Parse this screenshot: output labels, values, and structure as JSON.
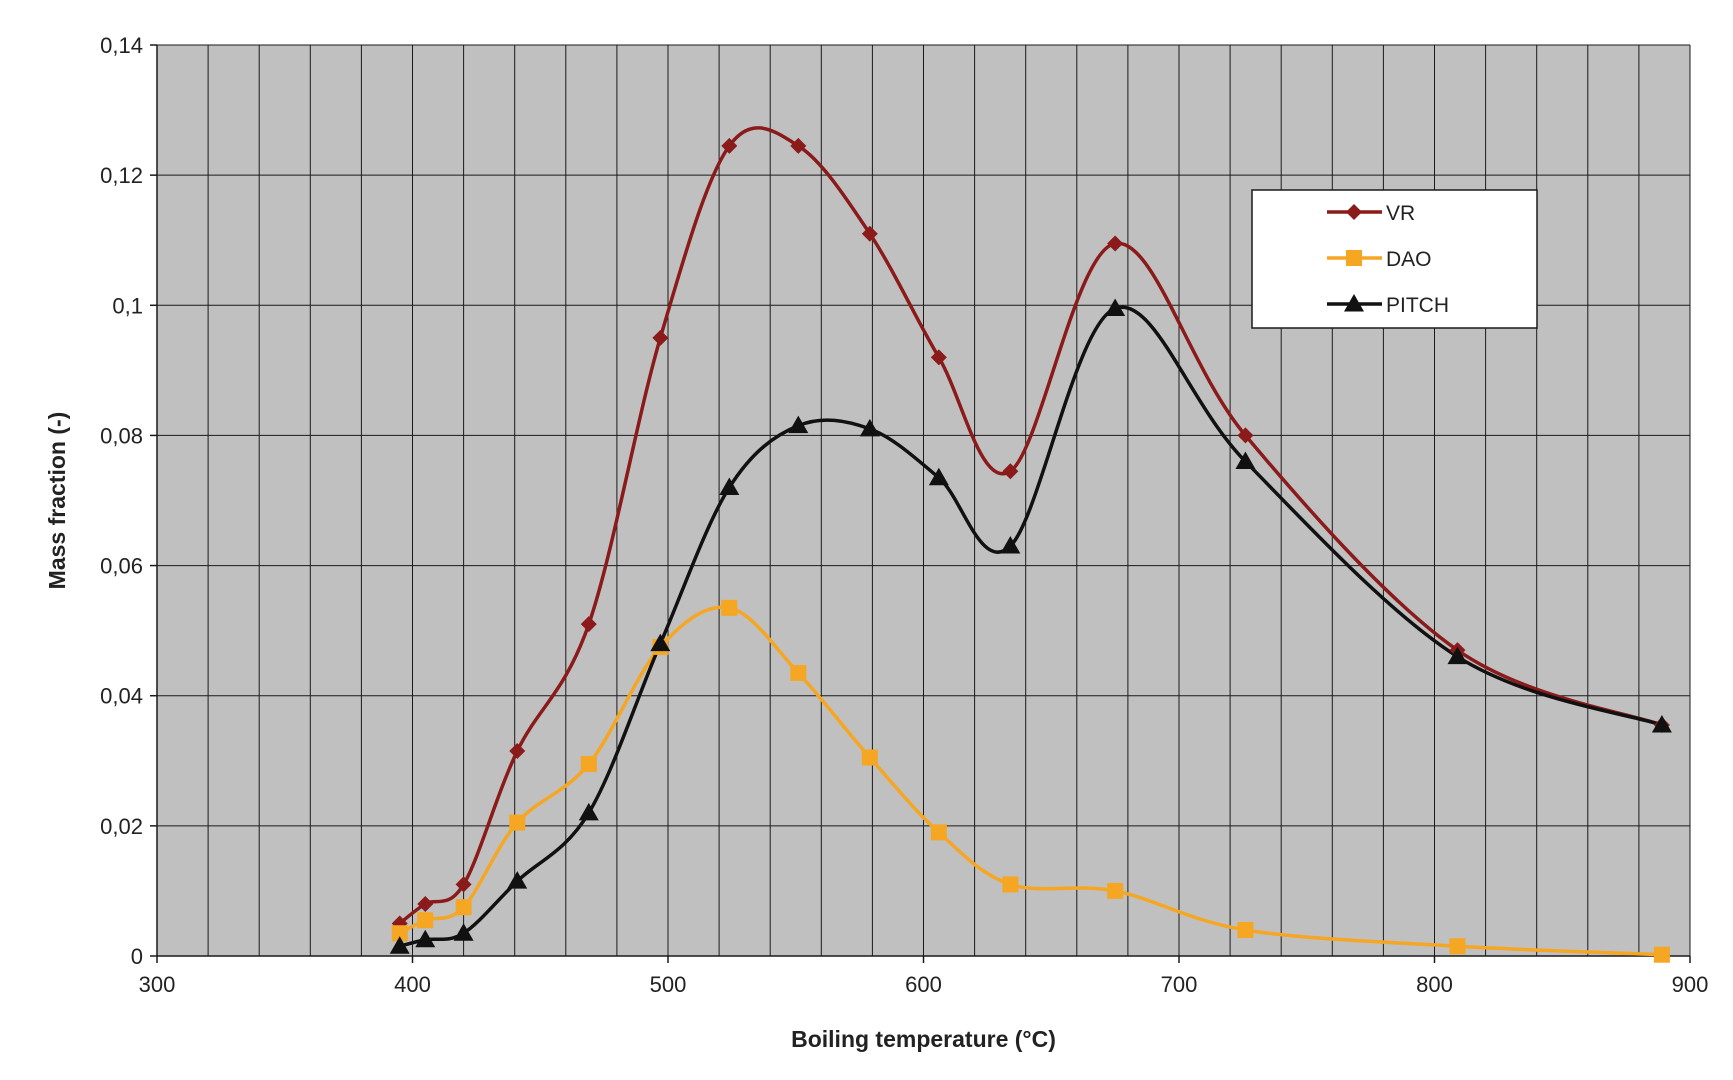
{
  "chart_data": {
    "type": "line",
    "smooth": true,
    "xlabel": "Boiling temperature (°C)",
    "ylabel": "Mass fraction (-)",
    "xlim": [
      300,
      900
    ],
    "ylim": [
      0,
      0.14
    ],
    "x_ticks": [
      300,
      400,
      500,
      600,
      700,
      800,
      900
    ],
    "x_tick_labels": [
      "300",
      "400",
      "500",
      "600",
      "700",
      "800",
      "900"
    ],
    "x_minor_grid_step": 20,
    "y_ticks": [
      0,
      0.02,
      0.04,
      0.06,
      0.08,
      0.1,
      0.12,
      0.14
    ],
    "y_tick_labels": [
      "0",
      "0,02",
      "0,04",
      "0,06",
      "0,08",
      "0,1",
      "0,12",
      "0,14"
    ],
    "grid": true,
    "plot_background": "#c0c0c0",
    "legend_position": "top-right",
    "series": [
      {
        "name": "VR",
        "color": "#8b1a1a",
        "marker": "diamond",
        "x": [
          395,
          405,
          420,
          441,
          469,
          497,
          524,
          551,
          579,
          606,
          634,
          675,
          726,
          809,
          889
        ],
        "y": [
          0.005,
          0.008,
          0.011,
          0.0315,
          0.051,
          0.095,
          0.1245,
          0.1245,
          0.111,
          0.092,
          0.0745,
          0.1095,
          0.08,
          0.047,
          0.0355
        ]
      },
      {
        "name": "DAO",
        "color": "#f5a623",
        "marker": "square",
        "x": [
          395,
          405,
          420,
          441,
          469,
          497,
          524,
          551,
          579,
          606,
          634,
          675,
          726,
          809,
          889
        ],
        "y": [
          0.0035,
          0.0055,
          0.0075,
          0.0205,
          0.0295,
          0.0475,
          0.0535,
          0.0435,
          0.0305,
          0.019,
          0.011,
          0.01,
          0.004,
          0.0015,
          0.0002
        ]
      },
      {
        "name": "PITCH",
        "color": "#111111",
        "marker": "triangle",
        "x": [
          395,
          405,
          420,
          441,
          469,
          497,
          524,
          551,
          579,
          606,
          634,
          675,
          726,
          809,
          889
        ],
        "y": [
          0.0015,
          0.0025,
          0.0035,
          0.0115,
          0.022,
          0.048,
          0.072,
          0.0815,
          0.081,
          0.0735,
          0.063,
          0.0995,
          0.076,
          0.046,
          0.0355
        ]
      }
    ]
  }
}
